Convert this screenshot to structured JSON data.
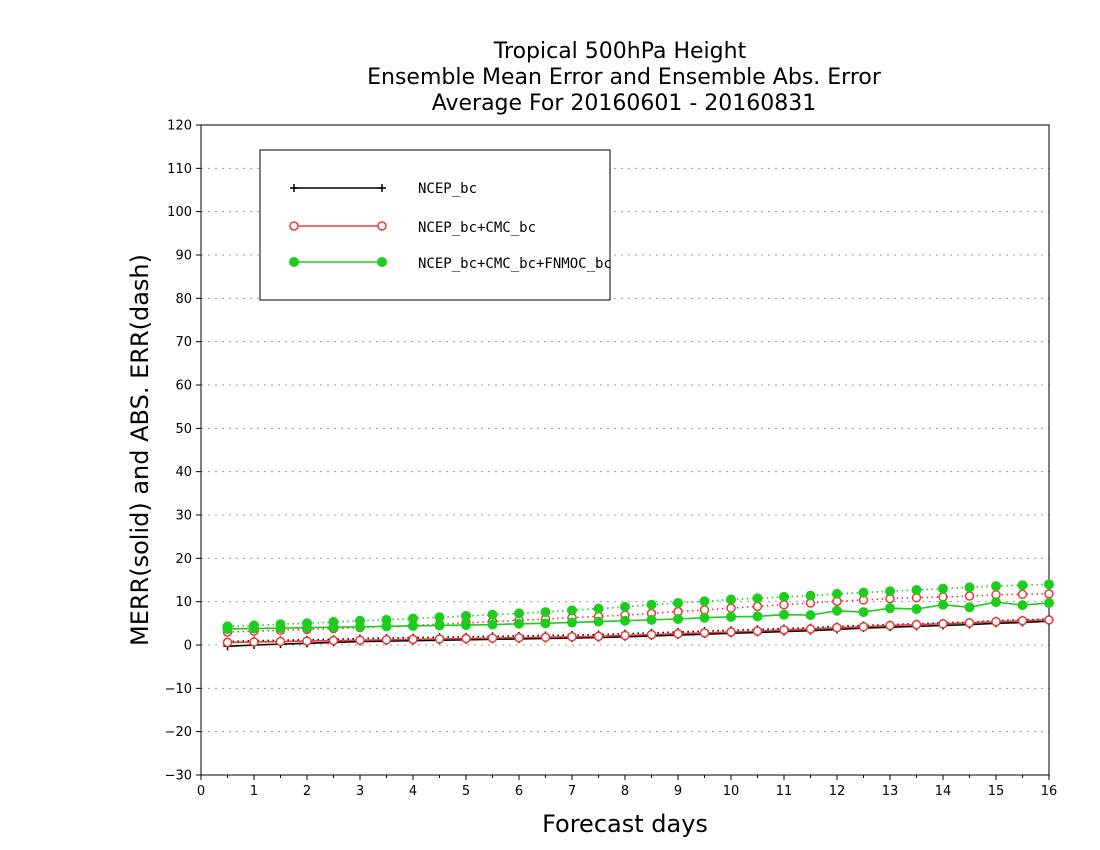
{
  "chart_data": {
    "type": "line",
    "title_lines": [
      "Tropical 500hPa Height",
      "Ensemble Mean Error and Ensemble Abs. Error",
      "Average For 20160601 - 20160831"
    ],
    "xlabel": "Forecast days",
    "ylabel": "MERR(solid) and ABS. ERR(dash)",
    "xlim": [
      0,
      16
    ],
    "ylim": [
      -30,
      120
    ],
    "x_ticks": [
      "0",
      "1",
      "2",
      "3",
      "4",
      "5",
      "6",
      "7",
      "8",
      "9",
      "10",
      "11",
      "12",
      "13",
      "14",
      "15",
      "16"
    ],
    "y_ticks": [
      "120",
      "110",
      "100",
      "90",
      "80",
      "70",
      "60",
      "50",
      "40",
      "30",
      "20",
      "10",
      "0",
      "−10",
      "−20",
      "−30"
    ],
    "grid": "dotted horizontal",
    "legend_position": "top-left",
    "x": [
      0.5,
      1,
      1.5,
      2,
      2.5,
      3,
      3.5,
      4,
      4.5,
      5,
      5.5,
      6,
      6.5,
      7,
      7.5,
      8,
      8.5,
      9,
      9.5,
      10,
      10.5,
      11,
      11.5,
      12,
      12.5,
      13,
      13.5,
      14,
      14.5,
      15,
      15.5,
      16
    ],
    "series": [
      {
        "name": "NCEP_bc",
        "color": "#000000",
        "marker": "plus",
        "merr": [
          -0.3,
          0,
          0.2,
          0.4,
          0.6,
          0.8,
          0.9,
          1.0,
          1.1,
          1.2,
          1.3,
          1.4,
          1.5,
          1.6,
          1.7,
          1.9,
          2.1,
          2.3,
          2.5,
          2.7,
          2.9,
          3.1,
          3.3,
          3.6,
          3.9,
          4.1,
          4.3,
          4.5,
          4.7,
          5.0,
          5.2,
          5.5
        ],
        "abs_err": [
          0.8,
          1.0,
          1.1,
          1.2,
          1.3,
          1.5,
          1.6,
          1.7,
          1.8,
          1.9,
          2.0,
          2.1,
          2.2,
          2.3,
          2.4,
          2.6,
          2.8,
          3.0,
          3.2,
          3.4,
          3.6,
          3.8,
          4.0,
          4.3,
          4.5,
          4.7,
          4.9,
          5.1,
          5.3,
          5.6,
          5.8,
          6.0
        ]
      },
      {
        "name": "NCEP_bc+CMC_bc",
        "color": "#e8393a",
        "marker": "open-circle",
        "merr": [
          0.6,
          0.7,
          0.8,
          0.9,
          1.0,
          1.1,
          1.2,
          1.3,
          1.4,
          1.5,
          1.6,
          1.7,
          1.8,
          1.9,
          2.0,
          2.2,
          2.4,
          2.6,
          2.8,
          3.0,
          3.2,
          3.5,
          3.7,
          4.0,
          4.2,
          4.5,
          4.7,
          4.9,
          5.1,
          5.4,
          5.6,
          5.8
        ],
        "abs_err": [
          3.0,
          3.2,
          3.4,
          3.6,
          3.8,
          4.0,
          4.3,
          4.5,
          4.8,
          5.1,
          5.4,
          5.7,
          6.0,
          6.3,
          6.6,
          6.9,
          7.3,
          7.7,
          8.1,
          8.5,
          8.9,
          9.3,
          9.7,
          10.1,
          10.4,
          10.7,
          10.9,
          11.1,
          11.3,
          11.6,
          11.7,
          11.8
        ]
      },
      {
        "name": "NCEP_bc+CMC_bc+FNMOC_bc",
        "color": "#1ecc1e",
        "marker": "filled-circle",
        "merr": [
          3.7,
          3.8,
          3.9,
          4.0,
          4.1,
          4.2,
          4.3,
          4.4,
          4.5,
          4.6,
          4.7,
          4.9,
          5.0,
          5.2,
          5.4,
          5.6,
          5.8,
          6.0,
          6.3,
          6.5,
          6.6,
          7.0,
          6.9,
          7.9,
          7.6,
          8.5,
          8.3,
          9.3,
          8.7,
          9.9,
          9.2,
          9.7
        ],
        "abs_err": [
          4.3,
          4.5,
          4.8,
          5.0,
          5.3,
          5.6,
          5.8,
          6.1,
          6.4,
          6.7,
          7.0,
          7.3,
          7.6,
          8.0,
          8.4,
          8.8,
          9.3,
          9.7,
          10.1,
          10.5,
          10.8,
          11.1,
          11.4,
          11.8,
          12.1,
          12.4,
          12.7,
          13.0,
          13.3,
          13.6,
          13.8,
          14.0
        ]
      }
    ]
  }
}
